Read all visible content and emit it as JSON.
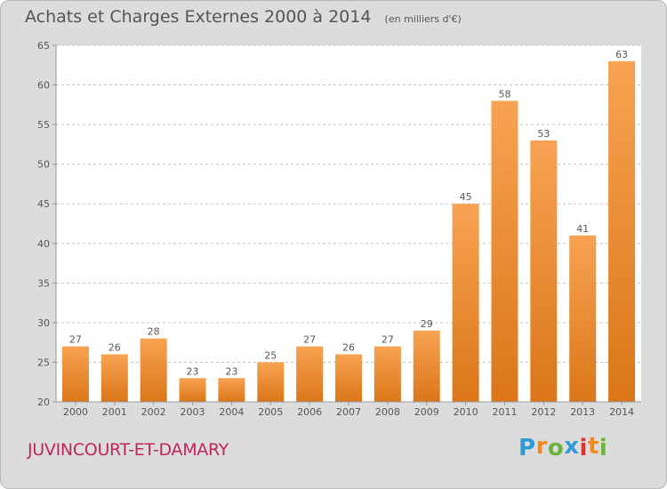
{
  "title": "Achats et Charges Externes 2000 à 2014",
  "unit": "(en milliers d'€)",
  "commune": "JUVINCOURT-ET-DAMARY",
  "logo": {
    "letters": [
      "P",
      "r",
      "o",
      "x",
      "i",
      "t",
      "i"
    ],
    "colors": [
      "#2e9bd6",
      "#f18a1e",
      "#6cb33e",
      "#2e9bd6",
      "#e2312d",
      "#f18a1e",
      "#6cb33e"
    ]
  },
  "colors": {
    "bar_top": "#f7a352",
    "bar_bottom": "#db7619",
    "background": "#dcdcdc",
    "plot_background": "#ffffff",
    "commune_text": "#c0255b"
  },
  "chart_data": {
    "type": "bar",
    "categories": [
      "2000",
      "2001",
      "2002",
      "2003",
      "2004",
      "2005",
      "2006",
      "2007",
      "2008",
      "2009",
      "2010",
      "2011",
      "2012",
      "2013",
      "2014"
    ],
    "values": [
      27,
      26,
      28,
      23,
      23,
      25,
      27,
      26,
      27,
      29,
      45,
      58,
      53,
      41,
      63
    ],
    "ylim": [
      20,
      65
    ],
    "yticks": [
      20,
      25,
      30,
      35,
      40,
      45,
      50,
      55,
      60,
      65
    ],
    "grid": "horizontal dashed",
    "title": "Achats et Charges Externes 2000 à 2014",
    "xlabel": "",
    "ylabel": ""
  }
}
